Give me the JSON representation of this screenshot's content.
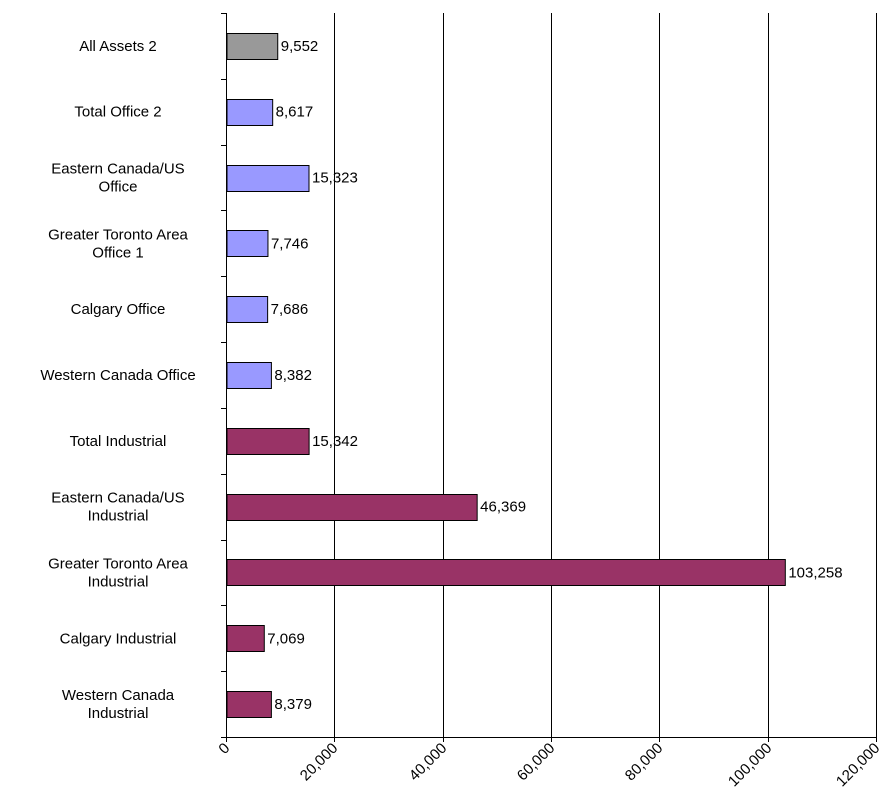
{
  "chart_data": {
    "type": "bar",
    "orientation": "horizontal",
    "categories": [
      [
        "All Assets 2"
      ],
      [
        "Total Office 2"
      ],
      [
        "Eastern Canada/US",
        "Office"
      ],
      [
        "Greater Toronto Area",
        "Office 1"
      ],
      [
        "Calgary Office"
      ],
      [
        "Western Canada Office"
      ],
      [
        "Total Industrial"
      ],
      [
        "Eastern Canada/US",
        "Industrial"
      ],
      [
        "Greater Toronto Area",
        "Industrial"
      ],
      [
        "Calgary Industrial"
      ],
      [
        "Western Canada",
        "Industrial"
      ]
    ],
    "values": [
      9552,
      8617,
      15323,
      7746,
      7686,
      8382,
      15342,
      46369,
      103258,
      7069,
      8379
    ],
    "value_labels": [
      "9,552",
      "8,617",
      "15,323",
      "7,746",
      "7,686",
      "8,382",
      "15,342",
      "46,369",
      "103,258",
      "7,069",
      "8,379"
    ],
    "groups": [
      "all",
      "office",
      "office",
      "office",
      "office",
      "office",
      "industrial",
      "industrial",
      "industrial",
      "industrial",
      "industrial"
    ],
    "colors": {
      "all": "#999999",
      "office": "#9999ff",
      "industrial": "#993366"
    },
    "xlim": [
      0,
      120000
    ],
    "xticks": [
      0,
      20000,
      40000,
      60000,
      80000,
      100000,
      120000
    ],
    "xtick_labels": [
      "0",
      "20,000",
      "40,000",
      "60,000",
      "80,000",
      "100,000",
      "120,000"
    ],
    "grid": "vertical",
    "legend": "none",
    "title": "",
    "xlabel": "",
    "ylabel": ""
  }
}
